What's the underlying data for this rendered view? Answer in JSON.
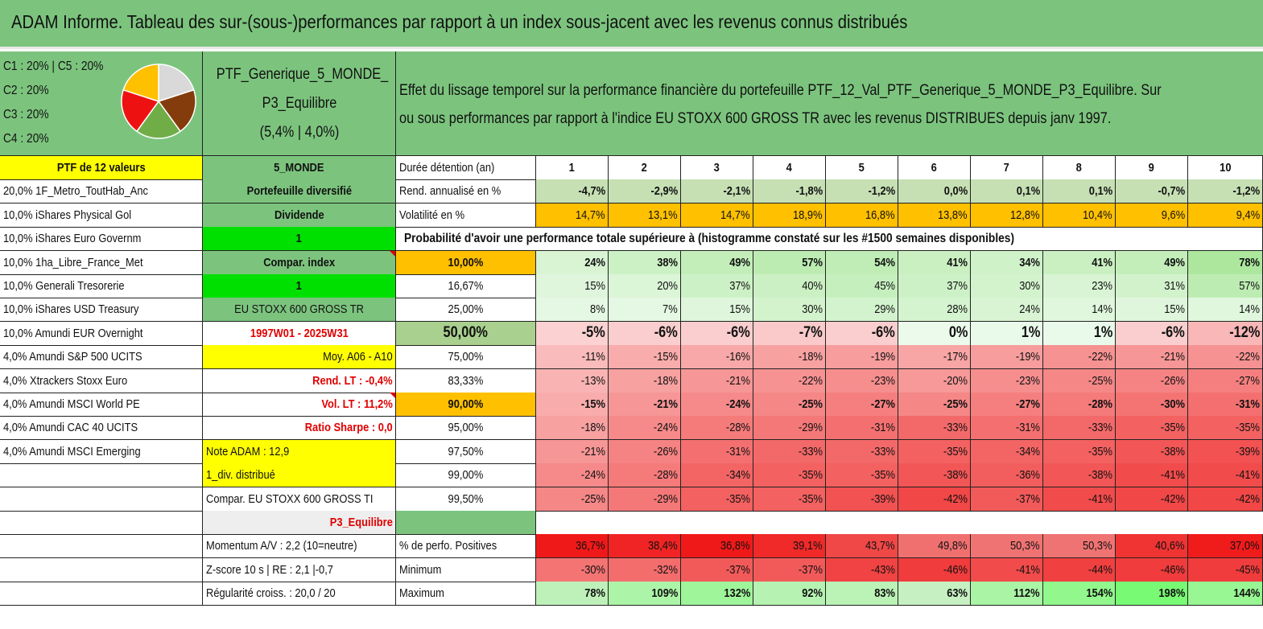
{
  "title": "ADAM Informe. Tableau des sur-(sous-)performances par rapport à un index sous-jacent avec les revenus connus distribués",
  "legend": [
    "C1 : 20% | C5 : 20%",
    "C2 : 20%",
    "C3 : 20%",
    "C4 : 20%"
  ],
  "pie": {
    "values": [
      20,
      20,
      20,
      20,
      20
    ],
    "colors": [
      "#d9d9d9",
      "#843c0c",
      "#70ad47",
      "#ee1111",
      "#ffc000"
    ]
  },
  "portfolio": {
    "name_line1": "PTF_Generique_5_MONDE_",
    "name_line2": "P3_Equilibre",
    "perf": "(5,4% | 4,0%)"
  },
  "description": {
    "line1": "Effet du lissage temporel sur la performance financière du portefeuille PTF_12_Val_PTF_Generique_5_MONDE_P3_Equilibre. Sur",
    "line2": "ou sous performances par rapport à l'indice EU STOXX 600 GROSS TR avec les revenus DISTRIBUES depuis janv 1997."
  },
  "holdings_header": "PTF de 12 valeurs",
  "holdings": [
    "20,0% 1F_Metro_ToutHab_Anc",
    "10,0% iShares Physical Gol",
    "10,0% iShares Euro Governm",
    "10,0% 1ha_Libre_France_Met",
    "10,0% Generali Tresorerie",
    "10,0% iShares USD Treasury",
    "10,0% Amundi EUR Overnight",
    "4,0% Amundi S&P 500 UCITS",
    "4,0% Xtrackers Stoxx Euro",
    "4,0% Amundi MSCI World PE",
    "4,0% Amundi CAC 40 UCITS",
    "4,0% Amundi MSCI Emerging",
    "",
    "",
    "",
    "",
    "",
    ""
  ],
  "info": [
    "5_MONDE",
    "Portefeuille diversifié",
    "Dividende",
    "1",
    "Compar. index",
    "1",
    "EU STOXX 600 GROSS TR",
    "1997W01 - 2025W31",
    "Moy. A06 - A10",
    "Rend. LT : -0,4%",
    "Vol. LT : 11,2%",
    "Ratio Sharpe : 0,0",
    "Note ADAM : 12,9",
    "1_div. distribué",
    "Compar. EU STOXX 600 GROSS TI",
    "P3_Equilibre",
    "Momentum A/V : 2,2 (10=neutre)",
    "Z-score 10 s | RE : 2,1 |-0,7",
    "Régularité croiss. : 20,0 / 20"
  ],
  "durations_label": "Durée détention (an)",
  "years": [
    "1",
    "2",
    "3",
    "4",
    "5",
    "6",
    "7",
    "8",
    "9",
    "10"
  ],
  "rend_label": "Rend. annualisé en %",
  "rend": [
    "-4,7%",
    "-2,9%",
    "-2,1%",
    "-1,8%",
    "-1,2%",
    "0,0%",
    "0,1%",
    "0,1%",
    "-0,7%",
    "-1,2%"
  ],
  "vol_label": "Volatilité en %",
  "vol": [
    "14,7%",
    "13,1%",
    "14,7%",
    "18,9%",
    "16,8%",
    "13,8%",
    "12,8%",
    "10,4%",
    "9,6%",
    "9,4%"
  ],
  "proba_title": "Probabilité d'avoir une performance totale supérieure à (histogramme constaté sur les #1500 semaines disponibles)",
  "probabilities": [
    {
      "p": "10,00%",
      "v": [
        "24%",
        "38%",
        "49%",
        "57%",
        "54%",
        "41%",
        "34%",
        "41%",
        "49%",
        "78%"
      ]
    },
    {
      "p": "16,67%",
      "v": [
        "15%",
        "20%",
        "37%",
        "40%",
        "45%",
        "37%",
        "30%",
        "23%",
        "31%",
        "57%"
      ]
    },
    {
      "p": "25,00%",
      "v": [
        "8%",
        "7%",
        "15%",
        "30%",
        "29%",
        "28%",
        "24%",
        "14%",
        "15%",
        "14%"
      ]
    },
    {
      "p": "50,00%",
      "v": [
        "-5%",
        "-6%",
        "-6%",
        "-7%",
        "-6%",
        "0%",
        "1%",
        "1%",
        "-6%",
        "-12%"
      ]
    },
    {
      "p": "75,00%",
      "v": [
        "-11%",
        "-15%",
        "-16%",
        "-18%",
        "-19%",
        "-17%",
        "-19%",
        "-22%",
        "-21%",
        "-22%"
      ]
    },
    {
      "p": "83,33%",
      "v": [
        "-13%",
        "-18%",
        "-21%",
        "-22%",
        "-23%",
        "-20%",
        "-23%",
        "-25%",
        "-26%",
        "-27%"
      ]
    },
    {
      "p": "90,00%",
      "v": [
        "-15%",
        "-21%",
        "-24%",
        "-25%",
        "-27%",
        "-25%",
        "-27%",
        "-28%",
        "-30%",
        "-31%"
      ]
    },
    {
      "p": "95,00%",
      "v": [
        "-18%",
        "-24%",
        "-28%",
        "-29%",
        "-31%",
        "-33%",
        "-31%",
        "-33%",
        "-35%",
        "-35%"
      ]
    },
    {
      "p": "97,50%",
      "v": [
        "-21%",
        "-26%",
        "-31%",
        "-33%",
        "-33%",
        "-35%",
        "-34%",
        "-35%",
        "-38%",
        "-39%"
      ]
    },
    {
      "p": "99,00%",
      "v": [
        "-24%",
        "-28%",
        "-34%",
        "-35%",
        "-35%",
        "-38%",
        "-36%",
        "-38%",
        "-41%",
        "-41%"
      ]
    },
    {
      "p": "99,50%",
      "v": [
        "-25%",
        "-29%",
        "-35%",
        "-35%",
        "-39%",
        "-42%",
        "-37%",
        "-41%",
        "-42%",
        "-42%"
      ]
    }
  ],
  "positives_label": "% de perfo. Positives",
  "positives": [
    "36,7%",
    "38,4%",
    "36,8%",
    "39,1%",
    "43,7%",
    "49,8%",
    "50,3%",
    "50,3%",
    "40,6%",
    "37,0%"
  ],
  "min_label": "Minimum",
  "minimum": [
    "-30%",
    "-32%",
    "-37%",
    "-37%",
    "-43%",
    "-46%",
    "-41%",
    "-44%",
    "-46%",
    "-45%"
  ],
  "max_label": "Maximum",
  "maximum": [
    "78%",
    "109%",
    "132%",
    "92%",
    "83%",
    "63%",
    "112%",
    "154%",
    "198%",
    "144%"
  ]
}
